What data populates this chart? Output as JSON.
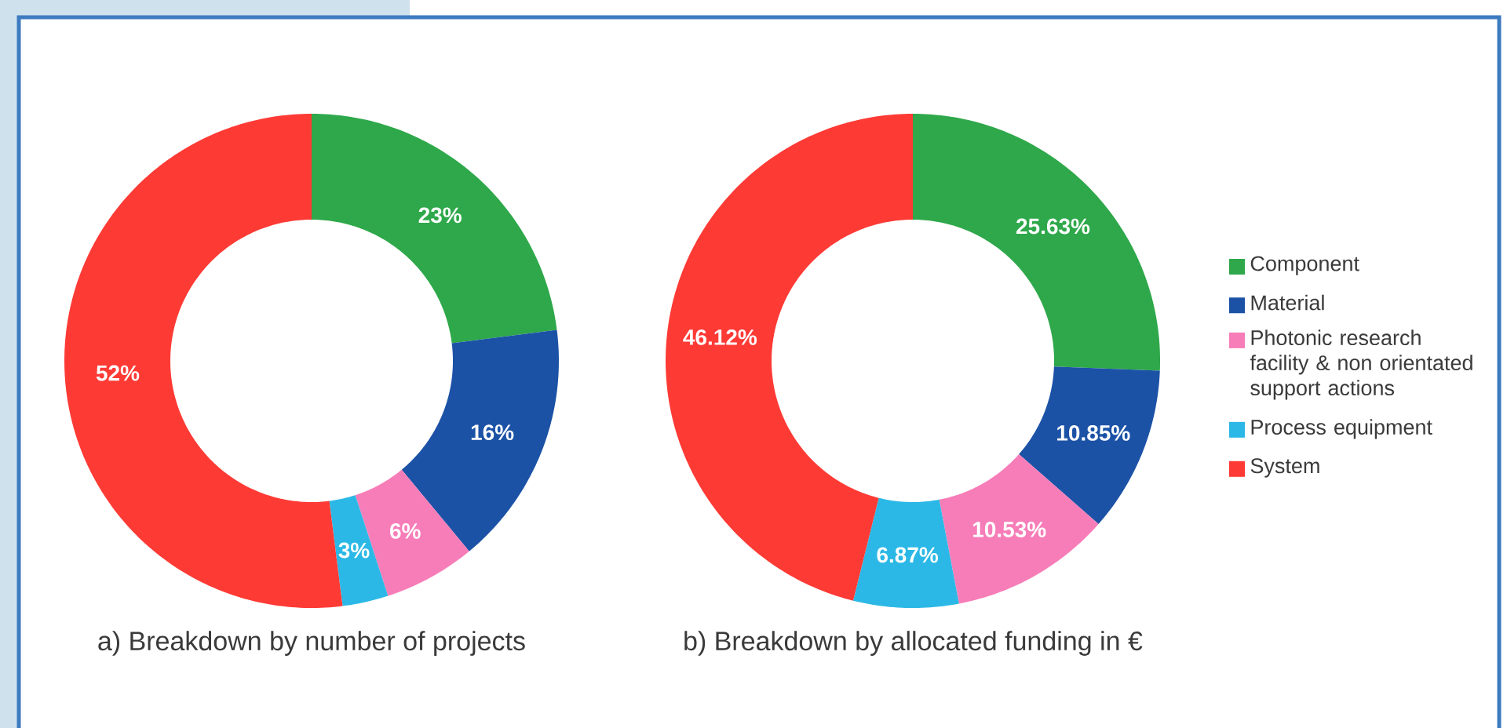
{
  "chart_data": [
    {
      "type": "donut",
      "title": "a) Breakdown by number of projects",
      "categories": [
        null,
        null,
        null,
        null,
        null
      ],
      "values": [
        23,
        16,
        6,
        3,
        52
      ],
      "colors": [
        "#2ea84a",
        "#1c52a6",
        "#f77db8",
        "#2bb8e6",
        "#fe3a35"
      ],
      "value_labels": [
        "23%",
        "16%",
        "6%",
        "3%",
        "52%"
      ]
    },
    {
      "type": "donut",
      "title": "b) Breakdown by allocated funding in €",
      "categories": [
        "Component",
        "Material",
        "Photonic research facility & non orientated support actions",
        "Process equipment",
        "System"
      ],
      "values": [
        25.63,
        10.85,
        10.53,
        6.87,
        46.12
      ],
      "colors": [
        "#2ea84a",
        "#1c52a6",
        "#f77db8",
        "#2bb8e6",
        "#fe3a35"
      ],
      "value_labels": [
        "25.63%",
        "10.85%",
        "10.53%",
        "6.87%",
        "46.12%"
      ],
      "legend": "right"
    }
  ]
}
